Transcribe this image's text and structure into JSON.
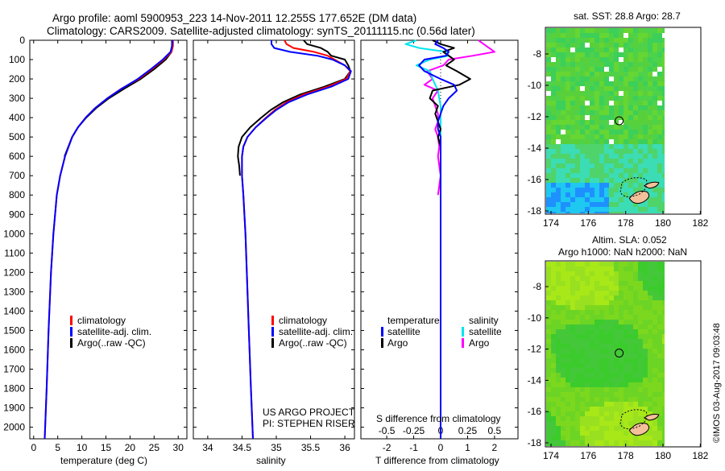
{
  "title": {
    "line1": "Argo profile: aoml 5900953_223 14-Nov-2011 12.255S 177.652E (DM data)",
    "line2": "Climatology: CARS2009. Satellite-adjusted climatology: synTS_20111115.nc (0.56d later)"
  },
  "colors": {
    "climatology": "#ff0000",
    "satellite": "#0000ff",
    "argo": "#000000",
    "sal_satellite": "#00e5ee",
    "sal_argo": "#ff00ff"
  },
  "chart_data": [
    {
      "type": "line",
      "xlabel": "temperature (deg C)",
      "ylabel": "depth",
      "xlim": [
        -0.8,
        31.8
      ],
      "ylim": [
        2060,
        0
      ],
      "xticks": [
        0,
        5,
        10,
        15,
        20,
        25,
        30
      ],
      "yticks": [
        0,
        100,
        200,
        300,
        400,
        500,
        600,
        700,
        800,
        900,
        1000,
        1100,
        1200,
        1300,
        1400,
        1500,
        1600,
        1700,
        1800,
        1900,
        2000
      ],
      "legend": [
        "climatology",
        "satellite-adj. clim.",
        "Argo(..raw -QC)"
      ],
      "depth": [
        0,
        30,
        60,
        100,
        150,
        200,
        250,
        300,
        350,
        400,
        450,
        500,
        600,
        700,
        800,
        1000,
        1200,
        1500,
        1800,
        2060
      ],
      "series": [
        {
          "name": "climatology",
          "values": [
            28.9,
            28.9,
            28.6,
            27.0,
            24.5,
            21.8,
            18.2,
            15.3,
            12.8,
            10.8,
            9.2,
            8.0,
            6.5,
            5.5,
            4.8,
            4.1,
            3.6,
            3.1,
            2.7,
            2.3
          ]
        },
        {
          "name": "satellite-adj. clim.",
          "values": [
            28.8,
            28.7,
            28.4,
            26.8,
            24.3,
            21.6,
            18.3,
            15.3,
            12.8,
            10.8,
            9.2,
            8.0,
            6.5,
            5.5,
            4.8,
            4.1,
            3.6,
            3.1,
            2.7,
            2.3
          ]
        },
        {
          "name": "Argo(..raw -QC)",
          "values": [
            28.7,
            28.7,
            28.6,
            27.4,
            25.0,
            22.2,
            18.8,
            15.6,
            13.0,
            10.9,
            9.2,
            8.0,
            6.4,
            null,
            null,
            null,
            null,
            null,
            null,
            null
          ]
        }
      ]
    },
    {
      "type": "line",
      "xlabel": "salinity",
      "xlim": [
        33.79,
        36.14
      ],
      "ylim": [
        2060,
        0
      ],
      "xticks": [
        34,
        34.5,
        35,
        35.5,
        36
      ],
      "legend": [
        "climatology",
        "satellite-adj. clim.",
        "Argo(..raw -QC)"
      ],
      "annotation": [
        "US ARGO PROJECT",
        "PI: STEPHEN RISER"
      ],
      "depth": [
        0,
        20,
        40,
        60,
        80,
        100,
        130,
        160,
        200,
        240,
        280,
        320,
        360,
        400,
        450,
        500,
        550,
        600,
        650,
        700,
        800,
        1000,
        1200,
        1500,
        1800,
        2060
      ],
      "series": [
        {
          "name": "climatology",
          "values": [
            35.12,
            35.15,
            35.25,
            35.55,
            35.75,
            35.85,
            36.0,
            36.08,
            36.02,
            35.75,
            35.4,
            35.15,
            34.98,
            34.85,
            34.7,
            34.58,
            34.52,
            34.5,
            34.5,
            34.5,
            34.52,
            34.55,
            34.57,
            34.6,
            34.63,
            34.66
          ]
        },
        {
          "name": "satellite-adj. clim.",
          "values": [
            34.93,
            34.93,
            34.97,
            35.2,
            35.6,
            35.82,
            36.0,
            36.09,
            36.05,
            35.8,
            35.45,
            35.18,
            35.0,
            34.86,
            34.7,
            34.58,
            34.52,
            34.5,
            34.5,
            34.5,
            34.52,
            34.55,
            34.57,
            34.6,
            34.63,
            34.66
          ]
        },
        {
          "name": "Argo(..raw -QC)",
          "values": [
            35.4,
            35.45,
            35.65,
            35.75,
            35.8,
            36.0,
            36.05,
            36.08,
            36.0,
            35.7,
            35.35,
            35.1,
            34.92,
            34.78,
            34.62,
            34.5,
            34.45,
            34.44,
            34.46,
            34.47,
            null,
            null,
            null,
            null,
            null,
            null
          ]
        }
      ]
    },
    {
      "type": "line",
      "xlabel": "T difference from climatology",
      "xlabel2": "S difference from climatology",
      "xlim": [
        -2.96,
        2.87
      ],
      "ylim": [
        2060,
        0
      ],
      "xticks": [
        -2,
        -1,
        0,
        1,
        2
      ],
      "xticks2_labels": [
        "-0.5",
        "-0.25",
        "0",
        "0.25",
        "0.5"
      ],
      "legend_titles": [
        "temperature",
        "salinity"
      ],
      "legend": [
        "satellite",
        "Argo",
        "satellite",
        "Argo"
      ],
      "depth": [
        0,
        20,
        40,
        60,
        80,
        100,
        130,
        160,
        200,
        230,
        260,
        300,
        340,
        380,
        420,
        460,
        500,
        550,
        600,
        700,
        800,
        1000,
        1500,
        2060
      ],
      "series": [
        {
          "name": "temperature satellite",
          "values": [
            -0.1,
            -0.2,
            0.1,
            0.3,
            0.2,
            -0.6,
            -0.8,
            -0.6,
            0.0,
            0.5,
            0.6,
            0.3,
            0.1,
            0.0,
            -0.1,
            -0.1,
            0.0,
            0.0,
            0.0,
            0.0,
            0.0,
            0.0,
            0.0,
            0.0
          ]
        },
        {
          "name": "temperature Argo",
          "values": [
            -0.3,
            0.0,
            0.5,
            0.1,
            0.3,
            0.5,
            0.2,
            0.6,
            1.1,
            0.7,
            -0.3,
            -0.4,
            -0.1,
            -0.2,
            -0.1,
            0.0,
            -0.1,
            0.0,
            0.0,
            null,
            null,
            null,
            null,
            null
          ]
        },
        {
          "name": "salinity satellite",
          "values": [
            -0.9,
            -1.3,
            -0.8,
            0.2,
            0.3,
            -0.4,
            -0.9,
            -0.4,
            -0.3,
            -0.2,
            -0.1,
            -0.05,
            0.0,
            0.0,
            0.0,
            0.0,
            0.0,
            0.0,
            0.0,
            0.0,
            0.0,
            0.0,
            0.0,
            0.0
          ]
        },
        {
          "name": "salinity Argo",
          "values": [
            1.4,
            1.6,
            1.8,
            2.0,
            1.2,
            0.3,
            0.1,
            -0.5,
            -0.3,
            -0.6,
            -0.1,
            -0.3,
            -0.2,
            -0.1,
            -0.1,
            -0.2,
            -0.1,
            -0.05,
            -0.1,
            0.0,
            -0.1,
            null,
            null,
            null
          ]
        }
      ]
    }
  ],
  "maps": [
    {
      "title": "sat. SST: 28.8 Argo: 28.7",
      "xticks": [
        "174",
        "176",
        "178",
        "180",
        "182"
      ],
      "yticks": [
        "-8",
        "-10",
        "-12",
        "-14",
        "-16",
        "-18"
      ],
      "marker": {
        "lon": 177.652,
        "lat": -12.255
      }
    },
    {
      "title1": "Altim. SLA: 0.052",
      "title2": "Argo h1000: NaN h2000: NaN",
      "xticks": [
        "174",
        "176",
        "178",
        "180",
        "182"
      ],
      "yticks": [
        "-8",
        "-10",
        "-12",
        "-14",
        "-16",
        "-18"
      ],
      "marker": {
        "lon": 177.652,
        "lat": -12.255
      }
    }
  ],
  "credit": "©IMOS 03-Aug-2017 09:03:48"
}
